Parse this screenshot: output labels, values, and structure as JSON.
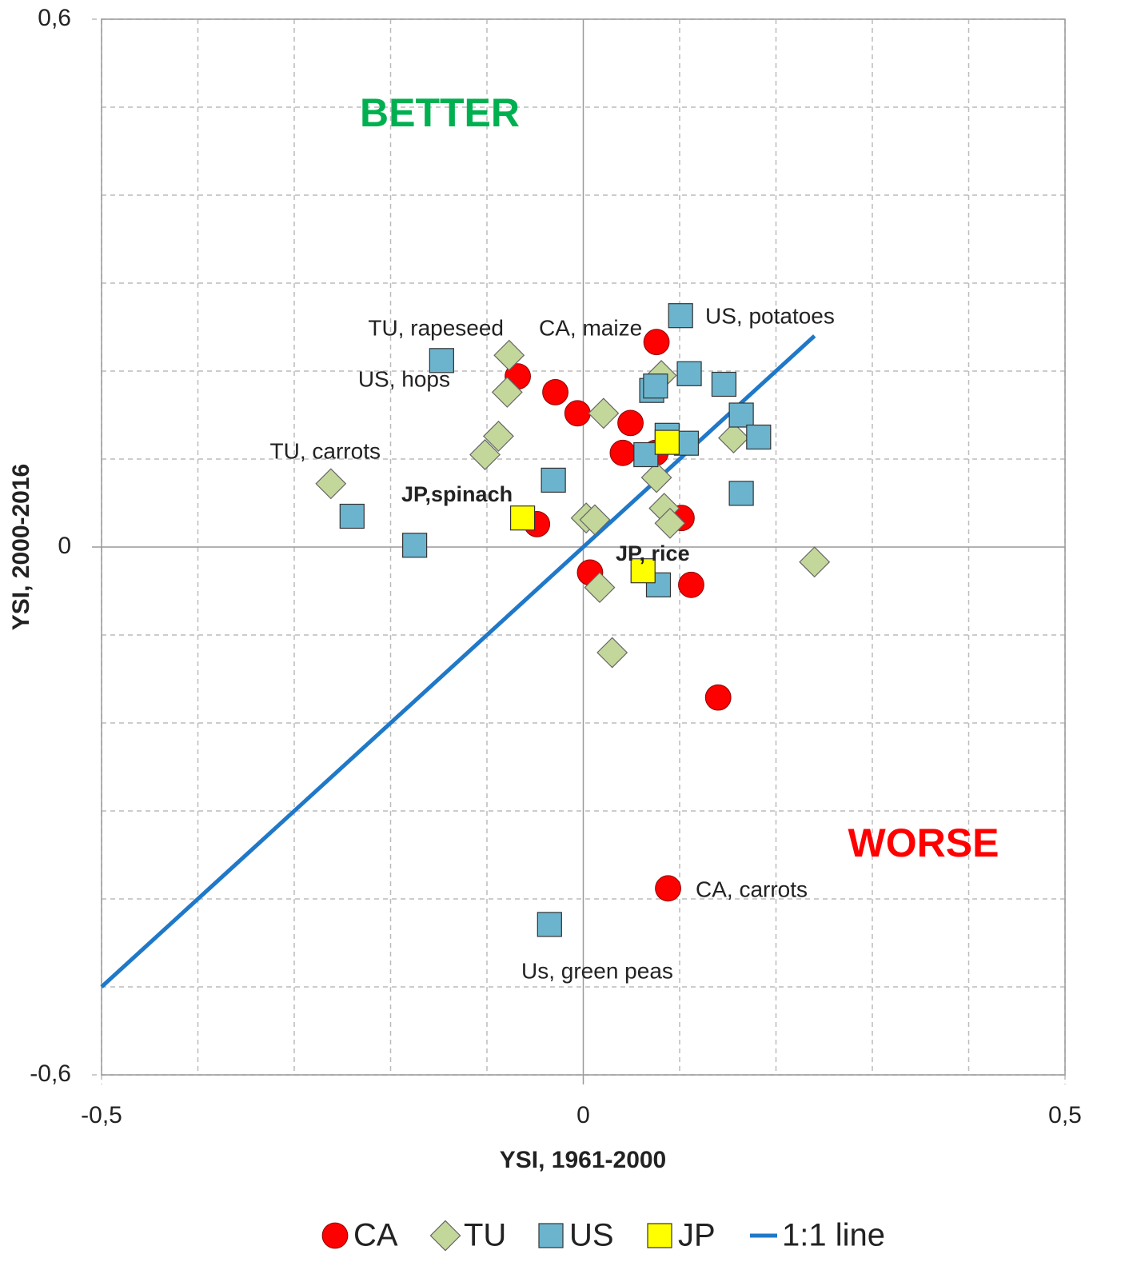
{
  "chart_data": {
    "type": "scatter",
    "x_label": "YSI, 1961-2000",
    "y_label": "YSI, 2000-2016",
    "xlim": [
      -0.5,
      0.5
    ],
    "ylim": [
      -0.6,
      0.6
    ],
    "xticks": [
      {
        "value": -0.5,
        "label": "-0,5"
      },
      0,
      {
        "value": 0.5,
        "label": "0,5"
      }
    ],
    "yticks": [
      {
        "value": -0.6,
        "label": "-0,6"
      },
      0,
      {
        "value": 0.6,
        "label": "0,6"
      }
    ],
    "x_gridlines": [
      -0.4,
      -0.3,
      -0.2,
      -0.1,
      0.1,
      0.2,
      0.3,
      0.4
    ],
    "y_gridlines": [
      -0.5,
      -0.4,
      -0.3,
      -0.2,
      -0.1,
      0.1,
      0.2,
      0.3,
      0.4,
      0.5
    ],
    "grid": true,
    "legend": "bottom",
    "series": [
      {
        "name": "1:1 line",
        "marker": "line",
        "color": "#1f78c8",
        "x": [
          -0.5,
          0.24
        ],
        "values": [
          -0.5,
          0.24
        ]
      },
      {
        "name": "CA",
        "marker": "circle",
        "color": "#ff0000",
        "x": [
          0.076,
          -0.068,
          -0.029,
          -0.006,
          0.049,
          0.041,
          0.075,
          -0.048,
          0.102,
          0.007,
          0.112,
          0.14,
          0.088
        ],
        "values": [
          0.233,
          0.194,
          0.176,
          0.152,
          0.141,
          0.107,
          0.107,
          0.026,
          0.033,
          -0.029,
          -0.043,
          -0.171,
          -0.388
        ]
      },
      {
        "name": "TU",
        "marker": "diamond",
        "color": "#c4d79b",
        "x": [
          -0.077,
          -0.079,
          0.081,
          0.021,
          -0.088,
          -0.102,
          0.156,
          -0.262,
          0.076,
          0.084,
          0.09,
          0.003,
          0.012,
          0.017,
          0.03,
          0.24
        ],
        "values": [
          0.218,
          0.176,
          0.195,
          0.152,
          0.126,
          0.105,
          0.124,
          0.072,
          0.079,
          0.044,
          0.027,
          0.033,
          0.031,
          -0.046,
          -0.12,
          -0.017
        ]
      },
      {
        "name": "US",
        "marker": "square",
        "color": "#6cb4cd",
        "x": [
          0.101,
          -0.147,
          0.11,
          0.071,
          0.075,
          0.146,
          0.164,
          0.182,
          0.087,
          0.107,
          0.065,
          -0.031,
          0.164,
          -0.24,
          -0.175,
          0.078,
          -0.035
        ],
        "values": [
          0.263,
          0.212,
          0.197,
          0.178,
          0.183,
          0.185,
          0.15,
          0.125,
          0.127,
          0.118,
          0.105,
          0.076,
          0.061,
          0.035,
          0.002,
          -0.043,
          -0.429
        ]
      },
      {
        "name": "JP",
        "marker": "square",
        "color": "#ffff00",
        "x": [
          0.087,
          -0.063,
          0.062
        ],
        "values": [
          0.119,
          0.033,
          -0.027
        ]
      }
    ],
    "annotations": [
      "TU, rapeseed",
      "CA, maize",
      "US, potatoes",
      "US, hops",
      "TU, carrots",
      "JP,spinach",
      "JP, rice",
      "CA, carrots",
      "Us, green peas",
      "BETTER",
      "WORSE"
    ]
  }
}
